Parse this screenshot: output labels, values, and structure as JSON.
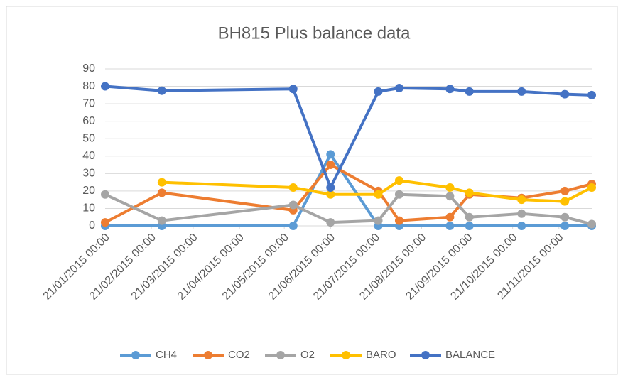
{
  "chart_data": {
    "type": "line",
    "title": "BH815 Plus balance data",
    "x": [
      "2015-01-21",
      "2015-02-28",
      "2015-05-27",
      "2015-06-21",
      "2015-07-23",
      "2015-08-06",
      "2015-09-09",
      "2015-09-22",
      "2015-10-27",
      "2015-11-25",
      "2015-12-13"
    ],
    "series": [
      {
        "name": "CH4",
        "color": "#5b9bd5",
        "values": [
          0,
          0,
          0,
          41,
          0,
          0,
          0,
          0,
          0,
          0,
          0
        ]
      },
      {
        "name": "CO2",
        "color": "#ed7d31",
        "values": [
          2,
          19,
          9,
          35,
          20,
          3,
          5,
          18,
          16,
          20,
          24
        ]
      },
      {
        "name": "O2",
        "color": "#a5a5a5",
        "values": [
          18,
          3,
          12,
          2,
          3,
          18,
          17,
          5,
          7,
          5,
          1
        ]
      },
      {
        "name": "BARO",
        "color": "#ffc000",
        "values": [
          null,
          25,
          22,
          18,
          18,
          26,
          22,
          19,
          15,
          14,
          22
        ]
      },
      {
        "name": "BALANCE",
        "color": "#4472c4",
        "values": [
          80,
          77.5,
          78.5,
          22,
          77,
          79,
          78.5,
          77,
          77,
          75.5,
          75
        ]
      }
    ],
    "xlim": [
      "2015-01-21",
      "2015-12-13"
    ],
    "xticks": [
      {
        "value": "2015-01-21",
        "label": "21/01/2015 00:00"
      },
      {
        "value": "2015-02-21",
        "label": "21/02/2015 00:00"
      },
      {
        "value": "2015-03-21",
        "label": "21/03/2015 00:00"
      },
      {
        "value": "2015-04-21",
        "label": "21/04/2015 00:00"
      },
      {
        "value": "2015-05-21",
        "label": "21/05/2015 00:00"
      },
      {
        "value": "2015-06-21",
        "label": "21/06/2015 00:00"
      },
      {
        "value": "2015-07-21",
        "label": "21/07/2015 00:00"
      },
      {
        "value": "2015-08-21",
        "label": "21/08/2015 00:00"
      },
      {
        "value": "2015-09-21",
        "label": "21/09/2015 00:00"
      },
      {
        "value": "2015-10-21",
        "label": "21/10/2015 00:00"
      },
      {
        "value": "2015-11-21",
        "label": "21/11/2015 00:00"
      }
    ],
    "ylim": [
      0,
      90
    ],
    "yticks": [
      0,
      10,
      20,
      30,
      40,
      50,
      60,
      70,
      80,
      90
    ],
    "grid": true,
    "legend": "bottom"
  }
}
